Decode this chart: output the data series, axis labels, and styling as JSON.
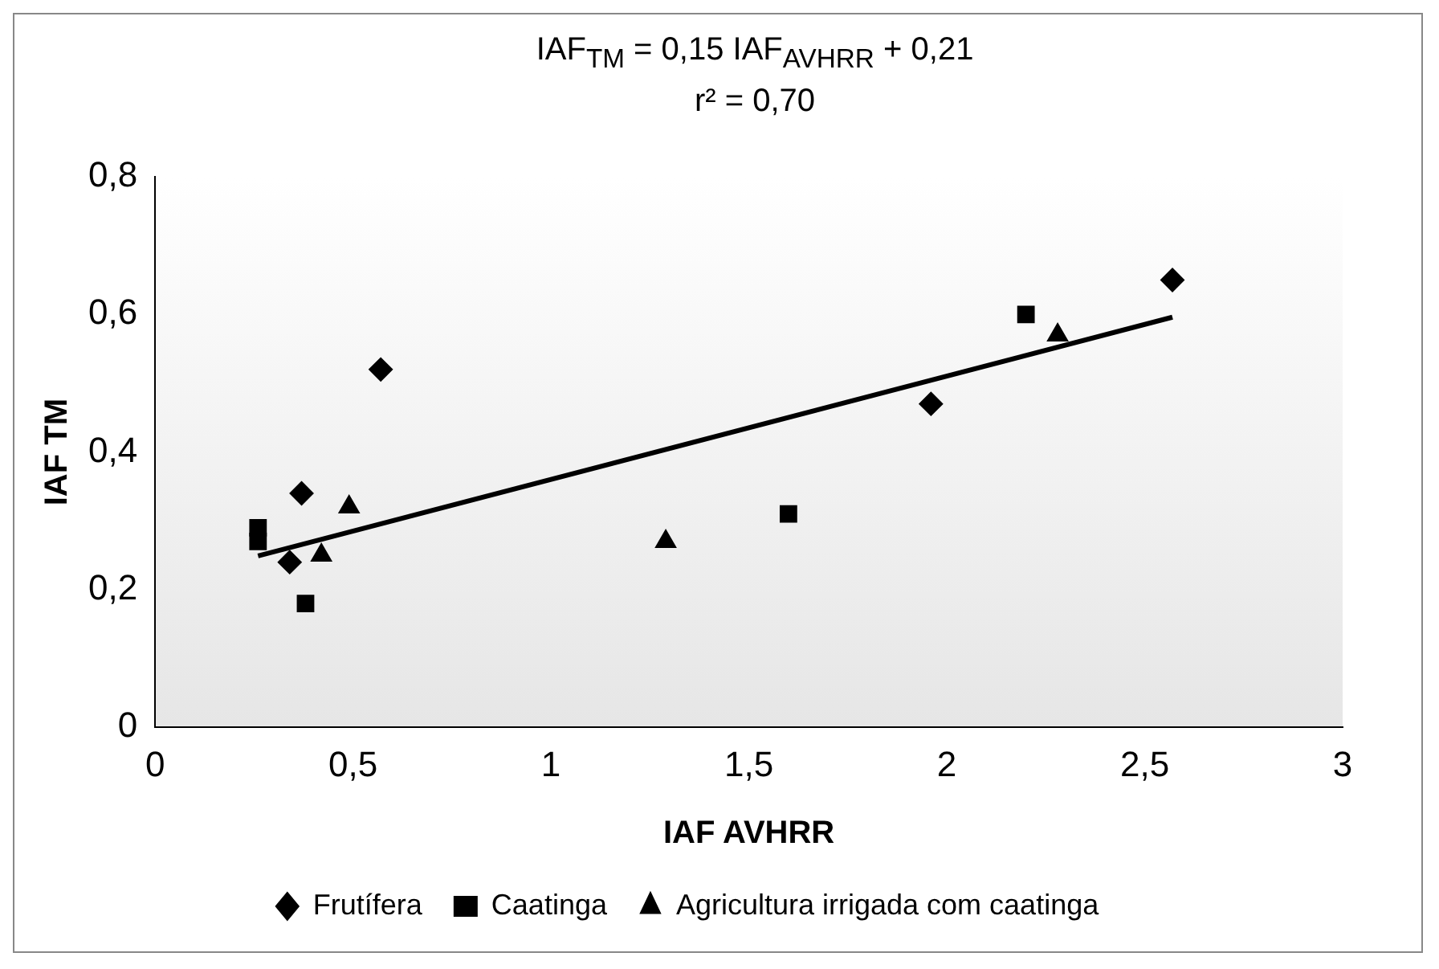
{
  "chart_data": {
    "type": "scatter",
    "xlabel": "IAF AVHRR",
    "ylabel": "IAF TM",
    "annotations": [
      "IAF$_{TM}$ = 0,15 IAF$_{AVHRR}$ + 0,21",
      "r² = 0,70"
    ],
    "xlim": [
      0,
      3
    ],
    "xticks": [
      0,
      {
        "value": 0.5,
        "label": "0,5"
      },
      1,
      {
        "value": 1.5,
        "label": "1,5"
      },
      2,
      {
        "value": 2.5,
        "label": "2,5"
      },
      3
    ],
    "ylim": [
      0,
      0.8
    ],
    "yticks": [
      0,
      {
        "value": 0.2,
        "label": "0,2"
      },
      {
        "value": 0.4,
        "label": "0,4"
      },
      {
        "value": 0.6,
        "label": "0,6"
      },
      {
        "value": 0.8,
        "label": "0,8"
      }
    ],
    "grid": false,
    "legend": "bottom",
    "series": [
      {
        "name": "Frutífera",
        "color": "#000000",
        "marker": "diamond",
        "x": [
          0.57,
          0.37,
          0.34,
          1.96,
          2.57
        ],
        "values": [
          0.52,
          0.34,
          0.24,
          0.47,
          0.65
        ]
      },
      {
        "name": "Caatinga",
        "color": "#000000",
        "marker": "square",
        "x": [
          0.26,
          0.26,
          0.38,
          1.6,
          2.2
        ],
        "values": [
          0.29,
          0.27,
          0.18,
          0.31,
          0.6
        ]
      },
      {
        "name": "Agricultura irrigada com caatinga",
        "color": "#000000",
        "marker": "triangle",
        "x": [
          0.42,
          0.49,
          1.29,
          2.28
        ],
        "values": [
          0.25,
          0.32,
          0.27,
          0.57
        ]
      },
      {
        "type": "line",
        "color": "#000000",
        "marker": "none",
        "x": [
          0.26,
          2.57
        ],
        "values": [
          0.249,
          0.596
        ]
      }
    ]
  }
}
